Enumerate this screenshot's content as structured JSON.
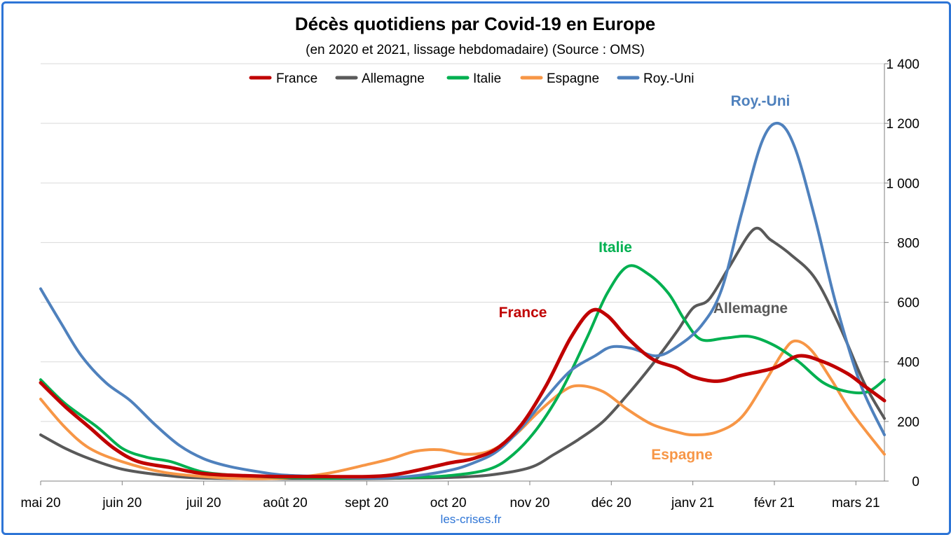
{
  "chart_data": {
    "type": "line",
    "title": "Décès quotidiens par Covid-19 en Europe",
    "subtitle": "(en 2020 et 2021, lissage hebdomadaire) (Source : OMS)",
    "source_note": "les-crises.fr",
    "x_tick_labels": [
      "mai 20",
      "juin 20",
      "juil 20",
      "août 20",
      "sept 20",
      "oct 20",
      "nov 20",
      "déc 20",
      "janv 21",
      "févr 21",
      "mars 21"
    ],
    "x_tick_months": [
      0,
      1,
      2,
      3,
      4,
      5,
      6,
      7,
      8,
      9,
      10
    ],
    "x_range_months": [
      0,
      10.35
    ],
    "y_tick_labels": [
      "0",
      "200",
      "400",
      "600",
      "800",
      "1 000",
      "1 200",
      "1 400"
    ],
    "ylim": [
      0,
      1400
    ],
    "y_axis_side": "right",
    "grid": "horizontal",
    "legend_position": "top",
    "series": [
      {
        "name": "France",
        "color": "#C00000",
        "points": [
          [
            0,
            330
          ],
          [
            0.3,
            250
          ],
          [
            0.6,
            180
          ],
          [
            0.9,
            110
          ],
          [
            1.2,
            65
          ],
          [
            1.6,
            45
          ],
          [
            2,
            25
          ],
          [
            2.5,
            18
          ],
          [
            3,
            15
          ],
          [
            3.5,
            15
          ],
          [
            4,
            15
          ],
          [
            4.3,
            20
          ],
          [
            4.6,
            35
          ],
          [
            5,
            60
          ],
          [
            5.3,
            75
          ],
          [
            5.6,
            110
          ],
          [
            5.9,
            190
          ],
          [
            6.2,
            320
          ],
          [
            6.5,
            480
          ],
          [
            6.75,
            570
          ],
          [
            6.95,
            555
          ],
          [
            7.2,
            480
          ],
          [
            7.5,
            410
          ],
          [
            7.8,
            380
          ],
          [
            8,
            350
          ],
          [
            8.3,
            335
          ],
          [
            8.6,
            355
          ],
          [
            9,
            380
          ],
          [
            9.3,
            420
          ],
          [
            9.6,
            400
          ],
          [
            9.9,
            360
          ],
          [
            10.1,
            320
          ],
          [
            10.35,
            270
          ]
        ]
      },
      {
        "name": "Allemagne",
        "color": "#595959",
        "points": [
          [
            0,
            155
          ],
          [
            0.3,
            110
          ],
          [
            0.6,
            75
          ],
          [
            1,
            40
          ],
          [
            1.5,
            20
          ],
          [
            2,
            10
          ],
          [
            3,
            8
          ],
          [
            4,
            8
          ],
          [
            4.5,
            10
          ],
          [
            5,
            12
          ],
          [
            5.5,
            20
          ],
          [
            6,
            45
          ],
          [
            6.3,
            90
          ],
          [
            6.6,
            140
          ],
          [
            6.9,
            200
          ],
          [
            7.2,
            290
          ],
          [
            7.5,
            390
          ],
          [
            7.8,
            500
          ],
          [
            8,
            580
          ],
          [
            8.2,
            610
          ],
          [
            8.45,
            720
          ],
          [
            8.75,
            845
          ],
          [
            8.95,
            810
          ],
          [
            9.2,
            760
          ],
          [
            9.5,
            680
          ],
          [
            9.8,
            520
          ],
          [
            10.1,
            330
          ],
          [
            10.35,
            210
          ]
        ]
      },
      {
        "name": "Italie",
        "color": "#00B050",
        "points": [
          [
            0,
            340
          ],
          [
            0.3,
            260
          ],
          [
            0.7,
            180
          ],
          [
            1,
            110
          ],
          [
            1.3,
            80
          ],
          [
            1.6,
            65
          ],
          [
            2,
            30
          ],
          [
            2.5,
            18
          ],
          [
            3,
            12
          ],
          [
            3.5,
            10
          ],
          [
            4,
            10
          ],
          [
            4.5,
            12
          ],
          [
            5,
            18
          ],
          [
            5.5,
            40
          ],
          [
            5.8,
            90
          ],
          [
            6.1,
            180
          ],
          [
            6.4,
            310
          ],
          [
            6.7,
            480
          ],
          [
            6.95,
            630
          ],
          [
            7.2,
            720
          ],
          [
            7.45,
            695
          ],
          [
            7.7,
            630
          ],
          [
            7.9,
            540
          ],
          [
            8.1,
            475
          ],
          [
            8.4,
            480
          ],
          [
            8.7,
            485
          ],
          [
            9,
            455
          ],
          [
            9.3,
            400
          ],
          [
            9.6,
            330
          ],
          [
            9.9,
            300
          ],
          [
            10.15,
            300
          ],
          [
            10.35,
            340
          ]
        ]
      },
      {
        "name": "Espagne",
        "color": "#F79646",
        "points": [
          [
            0,
            275
          ],
          [
            0.3,
            180
          ],
          [
            0.6,
            110
          ],
          [
            1,
            65
          ],
          [
            1.5,
            30
          ],
          [
            2,
            15
          ],
          [
            2.5,
            8
          ],
          [
            3,
            10
          ],
          [
            3.5,
            25
          ],
          [
            4,
            55
          ],
          [
            4.3,
            75
          ],
          [
            4.6,
            100
          ],
          [
            4.9,
            105
          ],
          [
            5.2,
            90
          ],
          [
            5.5,
            100
          ],
          [
            5.8,
            150
          ],
          [
            6.1,
            230
          ],
          [
            6.4,
            300
          ],
          [
            6.6,
            320
          ],
          [
            6.9,
            300
          ],
          [
            7.2,
            240
          ],
          [
            7.5,
            190
          ],
          [
            7.8,
            165
          ],
          [
            8,
            155
          ],
          [
            8.3,
            165
          ],
          [
            8.6,
            215
          ],
          [
            8.9,
            340
          ],
          [
            9.1,
            430
          ],
          [
            9.25,
            470
          ],
          [
            9.45,
            440
          ],
          [
            9.7,
            340
          ],
          [
            9.95,
            230
          ],
          [
            10.35,
            90
          ]
        ]
      },
      {
        "name": "Roy.-Uni",
        "color": "#4F81BD",
        "points": [
          [
            0,
            645
          ],
          [
            0.25,
            530
          ],
          [
            0.5,
            420
          ],
          [
            0.8,
            330
          ],
          [
            1.1,
            270
          ],
          [
            1.4,
            190
          ],
          [
            1.7,
            120
          ],
          [
            2,
            75
          ],
          [
            2.3,
            50
          ],
          [
            2.7,
            30
          ],
          [
            3,
            20
          ],
          [
            3.5,
            15
          ],
          [
            4,
            10
          ],
          [
            4.5,
            15
          ],
          [
            5,
            35
          ],
          [
            5.3,
            60
          ],
          [
            5.6,
            100
          ],
          [
            5.9,
            180
          ],
          [
            6.2,
            280
          ],
          [
            6.5,
            370
          ],
          [
            6.8,
            420
          ],
          [
            7,
            450
          ],
          [
            7.25,
            445
          ],
          [
            7.55,
            420
          ],
          [
            7.8,
            450
          ],
          [
            8.1,
            520
          ],
          [
            8.35,
            640
          ],
          [
            8.6,
            900
          ],
          [
            8.85,
            1140
          ],
          [
            9.05,
            1200
          ],
          [
            9.25,
            1120
          ],
          [
            9.5,
            880
          ],
          [
            9.75,
            600
          ],
          [
            10.05,
            330
          ],
          [
            10.35,
            155
          ]
        ]
      }
    ],
    "annotations": [
      {
        "text": "France",
        "series": "France",
        "color": "#C00000"
      },
      {
        "text": "Italie",
        "series": "Italie",
        "color": "#00B050"
      },
      {
        "text": "Allemagne",
        "series": "Allemagne",
        "color": "#595959"
      },
      {
        "text": "Espagne",
        "series": "Espagne",
        "color": "#F79646"
      },
      {
        "text": "Roy.-Uni",
        "series": "Roy.-Uni",
        "color": "#4F81BD"
      }
    ]
  }
}
